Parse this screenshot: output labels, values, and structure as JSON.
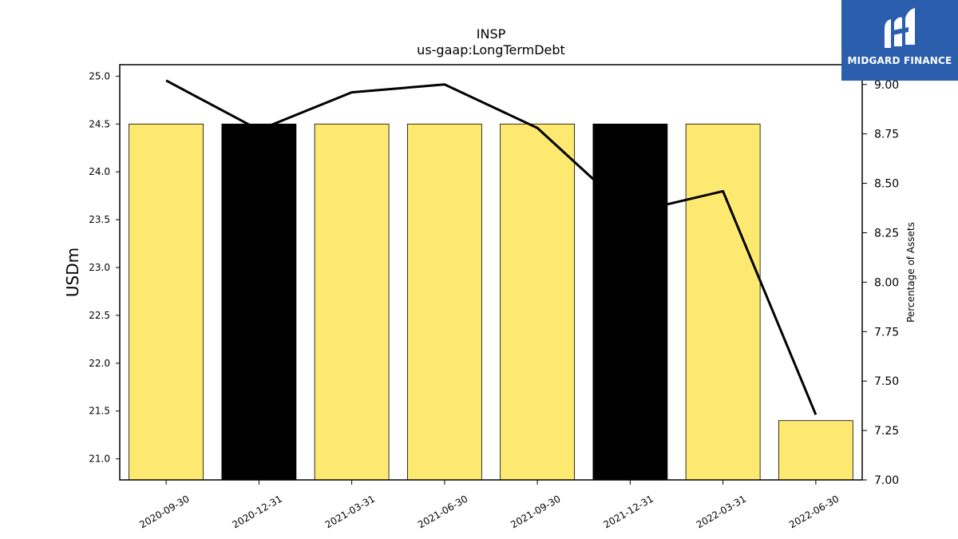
{
  "chart_data": {
    "type": "bar",
    "title": "INSP",
    "subtitle": "us-gaap:LongTermDebt",
    "ylabel": "USDm",
    "y2label": "Percentage of Assets",
    "categories": [
      "2020-09-30",
      "2020-12-31",
      "2021-03-31",
      "2021-06-30",
      "2021-09-30",
      "2021-12-31",
      "2022-03-31",
      "2022-06-30"
    ],
    "series": [
      {
        "type": "bar",
        "axis": "left",
        "values": [
          24.5,
          24.5,
          24.5,
          24.5,
          24.5,
          24.5,
          24.5,
          21.4
        ],
        "colors": [
          "#fde96f",
          "#000000",
          "#fde96f",
          "#fde96f",
          "#fde96f",
          "#000000",
          "#fde96f",
          "#fde96f"
        ]
      },
      {
        "type": "line",
        "axis": "right",
        "color": "#000000",
        "values": [
          9.02,
          8.77,
          8.96,
          9.0,
          8.78,
          8.35,
          8.46,
          7.33
        ]
      }
    ],
    "ylim": [
      20.78,
      25.12
    ],
    "yticks": [
      "21.0",
      "21.5",
      "22.0",
      "22.5",
      "23.0",
      "23.5",
      "24.0",
      "24.5",
      "25.0"
    ],
    "y2lim": [
      7.0,
      9.1
    ],
    "y2ticks": [
      "7.00",
      "7.25",
      "7.50",
      "7.75",
      "8.00",
      "8.25",
      "8.50",
      "8.75",
      "9.00"
    ],
    "grid": false
  },
  "logo": {
    "text": "MIDGARD FINANCE",
    "background": "#2b5fae"
  }
}
